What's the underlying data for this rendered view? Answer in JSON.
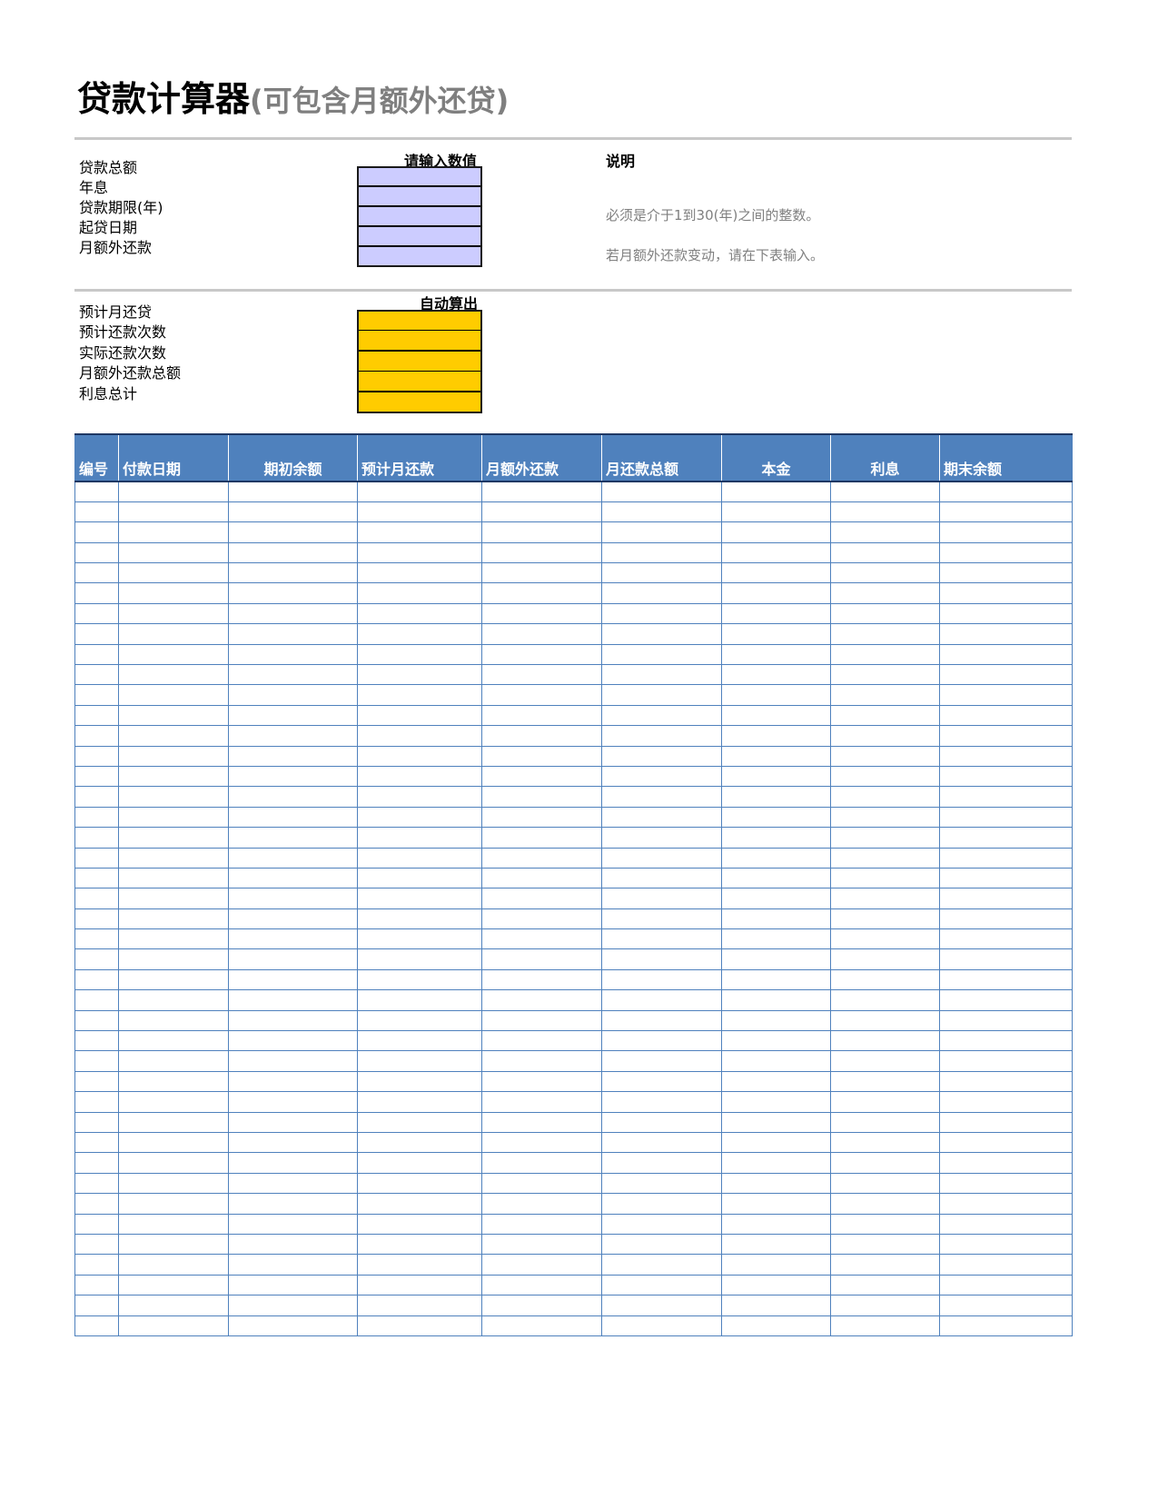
{
  "title": {
    "main": "贷款计算器",
    "sub": "(可包含月额外还贷)"
  },
  "input_section": {
    "header": "请输入数值",
    "notes_header": "说明",
    "rows": [
      {
        "label": "贷款总额",
        "value": "",
        "note": ""
      },
      {
        "label": "年息",
        "value": "",
        "note": ""
      },
      {
        "label": "贷款期限(年)",
        "value": "",
        "note": "必须是介于1到30(年)之间的整数。"
      },
      {
        "label": "起贷日期",
        "value": "",
        "note": ""
      },
      {
        "label": "月额外还款",
        "value": "",
        "note": "若月额外还款变动，请在下表输入。"
      }
    ]
  },
  "auto_section": {
    "header": "自动算出",
    "rows": [
      {
        "label": "预计月还贷",
        "value": ""
      },
      {
        "label": "预计还款次数",
        "value": ""
      },
      {
        "label": "实际还款次数",
        "value": ""
      },
      {
        "label": "月额外还款总额",
        "value": ""
      },
      {
        "label": "利息总计",
        "value": ""
      }
    ]
  },
  "schedule": {
    "columns": [
      "编号",
      "付款日期",
      "期初余额",
      "预计月还款",
      "月额外还款",
      "月还款总额",
      "本金",
      "利息",
      "期末余额"
    ],
    "row_count": 42
  },
  "colors": {
    "input_fill": "#ccccff",
    "auto_fill": "#ffcc00",
    "header_fill": "#4f81bd",
    "grid": "#4f81bd"
  }
}
